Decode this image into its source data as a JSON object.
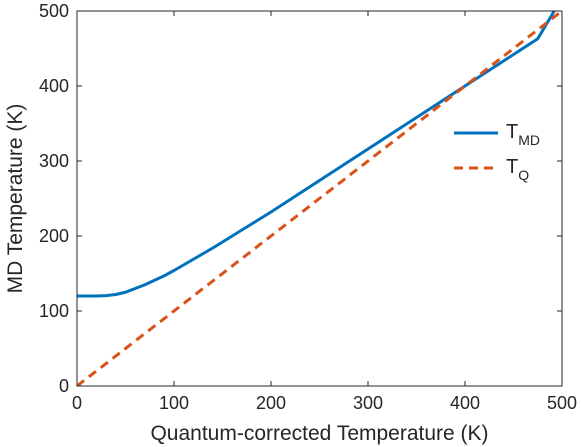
{
  "chart_data": {
    "type": "line",
    "xlabel": "Quantum-corrected Temperature (K)",
    "ylabel": "MD Temperature (K)",
    "xlim": [
      0,
      500
    ],
    "ylim": [
      0,
      500
    ],
    "xticks": [
      "0",
      "100",
      "200",
      "300",
      "400",
      "500"
    ],
    "yticks": [
      "0",
      "100",
      "200",
      "300",
      "400",
      "500"
    ],
    "grid": false,
    "legend_position": "right",
    "series": [
      {
        "name": "T",
        "name_subscript": "MD",
        "color": "#0072BD",
        "style": "solid",
        "x": [
          0,
          10,
          20,
          30,
          40,
          50,
          60,
          70,
          80,
          90,
          100,
          120,
          140,
          160,
          180,
          200,
          225,
          250,
          275,
          300,
          325,
          350,
          375,
          400,
          425,
          450,
          475,
          492
        ],
        "y": [
          120,
          120,
          120,
          120.5,
          122,
          125,
          130,
          135,
          141,
          147,
          154,
          169,
          184,
          200,
          216,
          232,
          253,
          274,
          295,
          316,
          337,
          358,
          379,
          400,
          421,
          442,
          463,
          500
        ]
      },
      {
        "name": "T",
        "name_subscript": "Q",
        "color": "#D95319",
        "style": "dashed",
        "x": [
          0,
          500
        ],
        "y": [
          0,
          500
        ]
      }
    ]
  }
}
